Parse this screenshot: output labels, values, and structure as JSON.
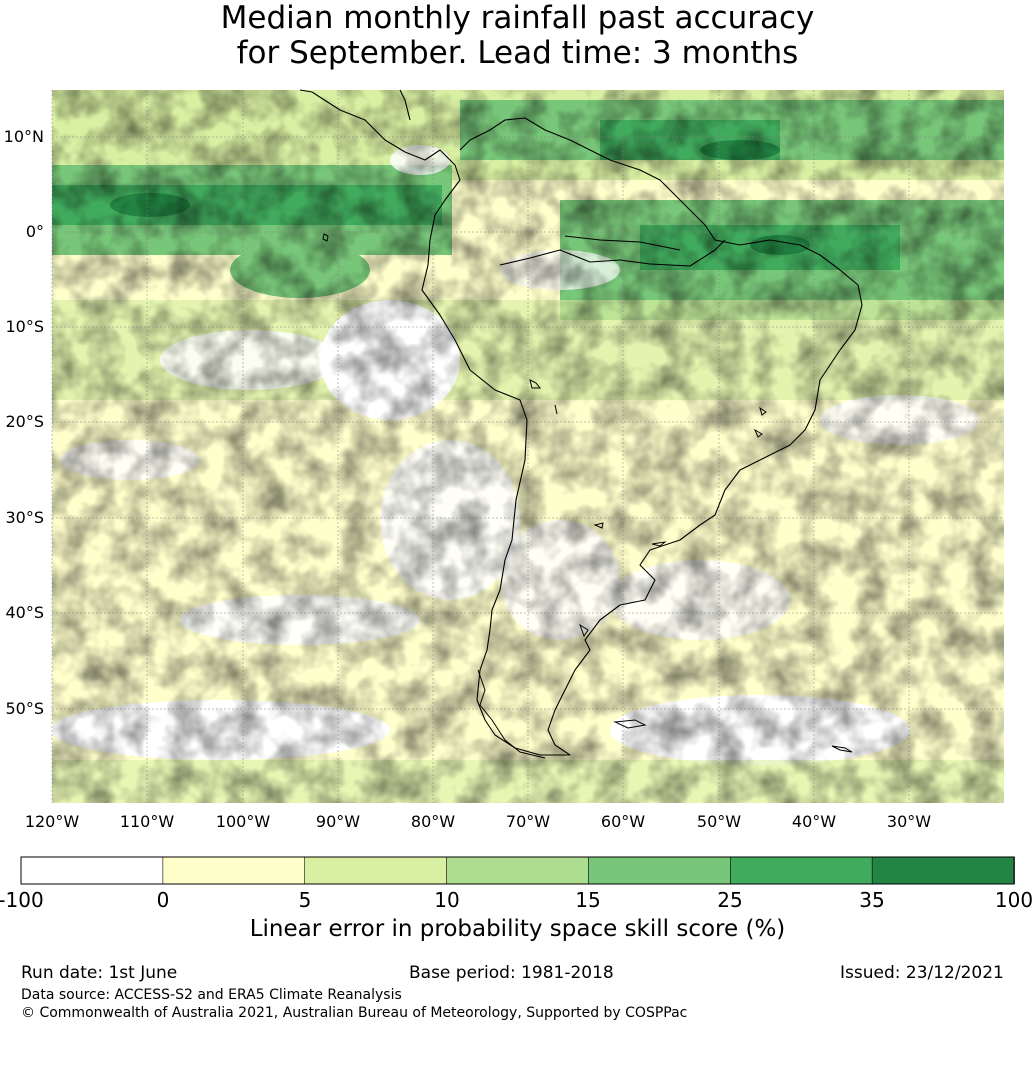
{
  "title": {
    "line1": "Median monthly rainfall past accuracy",
    "line2": "for September. Lead time: 3 months"
  },
  "map": {
    "latitude_labels": [
      "10°N",
      "0°",
      "10°S",
      "20°S",
      "30°S",
      "40°S",
      "50°S"
    ],
    "longitude_labels": [
      "120°W",
      "110°W",
      "100°W",
      "90°W",
      "80°W",
      "70°W",
      "60°W",
      "50°W",
      "40°W",
      "30°W"
    ],
    "colors": {
      "land_outline": "#000000",
      "gridline": "#808080"
    }
  },
  "colorbar": {
    "ticks": [
      "-100",
      "0",
      "5",
      "10",
      "15",
      "25",
      "35",
      "100"
    ],
    "colors": [
      "#ffffff",
      "#ffffcc",
      "#d9f0a3",
      "#addd8e",
      "#78c679",
      "#41ab5d",
      "#238443"
    ],
    "label": "Linear error in probability space skill score (%)"
  },
  "footer": {
    "run_date": "Run date: 1st June",
    "base_period": "Base period: 1981-2018",
    "issued": "Issued: 23/12/2021",
    "data_source": "Data source: ACCESS-S2 and ERA5 Climate Reanalysis",
    "copyright": "© Commonwealth of Australia 2021, Australian Bureau of Meteorology, Supported by COSPPac"
  }
}
